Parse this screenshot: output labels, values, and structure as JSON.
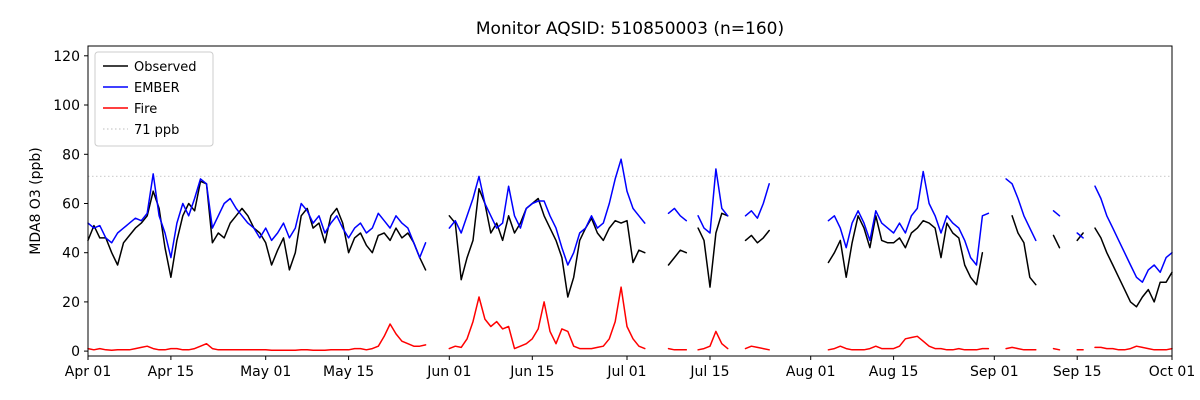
{
  "title": "Monitor AQSID: 510850003 (n=160)",
  "ylabel": "MDA8 O3 (ppb)",
  "legend": {
    "items": [
      {
        "label": "Observed",
        "color": "#000000",
        "dash": false
      },
      {
        "label": "EMBER",
        "color": "#0000ff",
        "dash": false
      },
      {
        "label": "Fire",
        "color": "#ff0000",
        "dash": false
      },
      {
        "label": "71 ppb",
        "color": "#d3d3d3",
        "dash": true
      }
    ]
  },
  "chart_data": {
    "type": "line",
    "title": "Monitor AQSID: 510850003 (n=160)",
    "xlabel": "",
    "ylabel": "MDA8 O3 (ppb)",
    "n_points": 160,
    "grid": false,
    "legend_position": "upper left",
    "x_unit": "day index from Apr 01",
    "xlim": [
      0,
      183
    ],
    "ylim": [
      -2,
      124
    ],
    "y_ticks": [
      0,
      20,
      40,
      60,
      80,
      100,
      120
    ],
    "x_ticks": [
      {
        "day": 0,
        "label": "Apr 01"
      },
      {
        "day": 14,
        "label": "Apr 15"
      },
      {
        "day": 30,
        "label": "May 01"
      },
      {
        "day": 44,
        "label": "May 15"
      },
      {
        "day": 61,
        "label": "Jun 01"
      },
      {
        "day": 75,
        "label": "Jun 15"
      },
      {
        "day": 91,
        "label": "Jul 01"
      },
      {
        "day": 105,
        "label": "Jul 15"
      },
      {
        "day": 122,
        "label": "Aug 01"
      },
      {
        "day": 136,
        "label": "Aug 15"
      },
      {
        "day": 153,
        "label": "Sep 01"
      },
      {
        "day": 167,
        "label": "Sep 15"
      },
      {
        "day": 183,
        "label": "Oct 01"
      }
    ],
    "threshold": {
      "value": 71,
      "label": "71 ppb",
      "color": "#d3d3d3",
      "style": "dotted"
    },
    "series": [
      {
        "name": "Observed",
        "color": "#000000",
        "values": [
          45,
          51,
          46,
          46,
          40,
          35,
          44,
          47,
          50,
          52,
          55,
          65,
          58,
          42,
          30,
          45,
          55,
          60,
          57,
          69,
          68,
          44,
          48,
          46,
          52,
          55,
          58,
          55,
          50,
          48,
          44,
          35,
          41,
          46,
          33,
          40,
          55,
          58,
          50,
          52,
          44,
          55,
          58,
          52,
          40,
          46,
          48,
          43,
          40,
          47,
          48,
          45,
          50,
          46,
          48,
          44,
          38,
          33,
          null,
          null,
          null,
          55,
          52,
          29,
          38,
          45,
          66,
          60,
          48,
          52,
          45,
          55,
          48,
          52,
          58,
          60,
          62,
          55,
          50,
          45,
          38,
          22,
          30,
          45,
          50,
          54,
          48,
          45,
          50,
          53,
          52,
          53,
          36,
          41,
          40,
          null,
          null,
          null,
          35,
          38,
          41,
          40,
          null,
          50,
          45,
          26,
          48,
          56,
          55,
          null,
          null,
          45,
          47,
          44,
          46,
          49,
          null,
          null,
          null,
          null,
          null,
          null,
          null,
          null,
          null,
          36,
          40,
          45,
          30,
          44,
          55,
          50,
          42,
          55,
          45,
          44,
          44,
          46,
          42,
          48,
          50,
          53,
          52,
          50,
          38,
          52,
          48,
          46,
          35,
          30,
          27,
          40,
          null,
          null,
          null,
          null,
          55,
          48,
          44,
          30,
          27,
          null,
          null,
          47,
          42,
          null,
          null,
          45,
          48,
          null,
          50,
          46,
          40,
          35,
          30,
          25,
          20,
          18,
          22,
          25,
          20,
          28,
          28,
          32
        ]
      },
      {
        "name": "EMBER",
        "color": "#0000ff",
        "values": [
          52,
          50,
          51,
          46,
          44,
          48,
          50,
          52,
          54,
          53,
          56,
          72,
          55,
          48,
          38,
          52,
          60,
          55,
          62,
          70,
          68,
          50,
          55,
          60,
          62,
          58,
          55,
          52,
          50,
          46,
          50,
          45,
          48,
          52,
          46,
          50,
          60,
          57,
          52,
          55,
          48,
          52,
          55,
          50,
          46,
          50,
          52,
          48,
          50,
          56,
          53,
          50,
          55,
          52,
          50,
          44,
          38,
          44,
          null,
          null,
          null,
          50,
          53,
          48,
          55,
          62,
          71,
          60,
          55,
          50,
          52,
          67,
          55,
          50,
          58,
          60,
          61,
          61,
          55,
          50,
          42,
          35,
          40,
          48,
          50,
          55,
          50,
          52,
          60,
          70,
          78,
          65,
          58,
          55,
          52,
          null,
          null,
          null,
          56,
          58,
          55,
          53,
          null,
          55,
          50,
          48,
          74,
          58,
          55,
          null,
          null,
          55,
          57,
          54,
          60,
          68,
          null,
          null,
          null,
          null,
          null,
          null,
          null,
          null,
          null,
          53,
          55,
          50,
          42,
          52,
          57,
          52,
          45,
          57,
          52,
          50,
          48,
          52,
          48,
          55,
          58,
          73,
          60,
          55,
          48,
          55,
          52,
          50,
          45,
          38,
          35,
          55,
          56,
          null,
          null,
          70,
          68,
          62,
          55,
          50,
          45,
          null,
          null,
          57,
          55,
          null,
          null,
          48,
          46,
          null,
          67,
          62,
          55,
          50,
          45,
          40,
          35,
          30,
          28,
          33,
          35,
          32,
          38,
          40
        ]
      },
      {
        "name": "Fire",
        "color": "#ff0000",
        "values": [
          1,
          0.5,
          1,
          0.5,
          0.3,
          0.5,
          0.5,
          0.5,
          1,
          1.5,
          2,
          1,
          0.5,
          0.5,
          1,
          1,
          0.5,
          0.5,
          1,
          2,
          3,
          1,
          0.5,
          0.5,
          0.5,
          0.5,
          0.5,
          0.5,
          0.5,
          0.5,
          0.5,
          0.3,
          0.3,
          0.3,
          0.3,
          0.3,
          0.5,
          0.5,
          0.3,
          0.3,
          0.3,
          0.5,
          0.5,
          0.5,
          0.5,
          1,
          1,
          0.5,
          1,
          2,
          6,
          11,
          7,
          4,
          3,
          2,
          2,
          2.5,
          null,
          null,
          null,
          1,
          2,
          1.5,
          5,
          12,
          22,
          13,
          10,
          12,
          9,
          10,
          1,
          2,
          3,
          5,
          9,
          20,
          8,
          3,
          9,
          8,
          2,
          1,
          1,
          1,
          1.5,
          2,
          5,
          12,
          26,
          10,
          5,
          2,
          1,
          null,
          null,
          null,
          1,
          0.5,
          0.5,
          0.5,
          null,
          0.5,
          1,
          2,
          8,
          3,
          1,
          null,
          null,
          1,
          2,
          1.5,
          1,
          0.5,
          null,
          null,
          null,
          null,
          null,
          null,
          null,
          null,
          null,
          0.5,
          1,
          2,
          1,
          0.5,
          0.5,
          0.5,
          1,
          2,
          1,
          1,
          1,
          2,
          5,
          5.5,
          6,
          4,
          2,
          1,
          1,
          0.5,
          0.5,
          1,
          0.5,
          0.5,
          0.5,
          1,
          1,
          null,
          null,
          1,
          1.5,
          1,
          0.5,
          0.5,
          0.5,
          null,
          null,
          1,
          0.5,
          null,
          null,
          0.5,
          0.5,
          null,
          1.5,
          1.5,
          1,
          1,
          0.5,
          0.5,
          1,
          2,
          1.5,
          1,
          0.5,
          0.5,
          0.5,
          1
        ]
      }
    ]
  }
}
